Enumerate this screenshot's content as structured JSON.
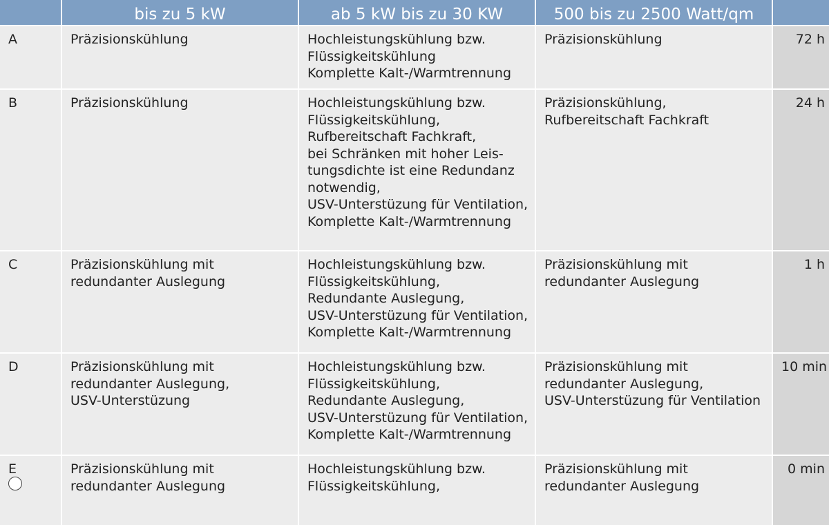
{
  "table": {
    "header": [
      "bis zu 5 kW",
      "ab 5 kW bis zu 30 KW",
      "500 bis zu 2500 Watt/qm"
    ],
    "rows": [
      {
        "label": "A",
        "cells": [
          [
            "Präzisionskühlung"
          ],
          [
            "Hochleistungskühlung bzw.",
            "Flüssigkeitskühlung",
            "Komplette Kalt-/Warmtrennung"
          ],
          [
            "Präzisionskühlung"
          ]
        ],
        "time": "72 h"
      },
      {
        "label": "B",
        "cells": [
          [
            "Präzisionskühlung"
          ],
          [
            "Hochleistungskühlung bzw.",
            "Flüssigkeitskühlung,",
            "Rufbereitschaft Fachkraft,",
            "bei Schränken mit hoher Leis-",
            "tungsdichte ist eine Redundanz",
            "notwendig,",
            "USV-Unterstüzung für Ventilation,",
            "Komplette Kalt-/Warmtrennung"
          ],
          [
            "Präzisionskühlung,",
            "Rufbereitschaft Fachkraft"
          ]
        ],
        "time": "24 h"
      },
      {
        "label": "C",
        "cells": [
          [
            "Präzisionskühlung mit",
            "redundanter Auslegung"
          ],
          [
            "Hochleistungskühlung bzw.",
            "Flüssigkeitskühlung,",
            "Redundante Auslegung,",
            "USV-Unterstüzung für Ventilation,",
            "Komplette Kalt-/Warmtrennung"
          ],
          [
            "Präzisionskühlung mit",
            "redundanter Auslegung"
          ]
        ],
        "time": "1 h"
      },
      {
        "label": "D",
        "cells": [
          [
            "Präzisionskühlung mit",
            "redundanter Auslegung,",
            "USV-Unterstüzung"
          ],
          [
            "Hochleistungskühlung bzw.",
            "Flüssigkeitskühlung,",
            "Redundante Auslegung,",
            "USV-Unterstüzung für Ventilation,",
            "Komplette Kalt-/Warmtrennung"
          ],
          [
            "Präzisionskühlung mit",
            "redundanter Auslegung,",
            "USV-Unterstüzung für Ventilation"
          ]
        ],
        "time": "10 min"
      },
      {
        "label": "E",
        "cells": [
          [
            "Präzisionskühlung mit",
            "redundanter Auslegung"
          ],
          [
            "Hochleistungskühlung bzw.",
            "Flüssigkeitskühlung,"
          ],
          [
            "Präzisionskühlung mit",
            "redundanter Auslegung"
          ]
        ],
        "time": "0 min"
      }
    ]
  }
}
